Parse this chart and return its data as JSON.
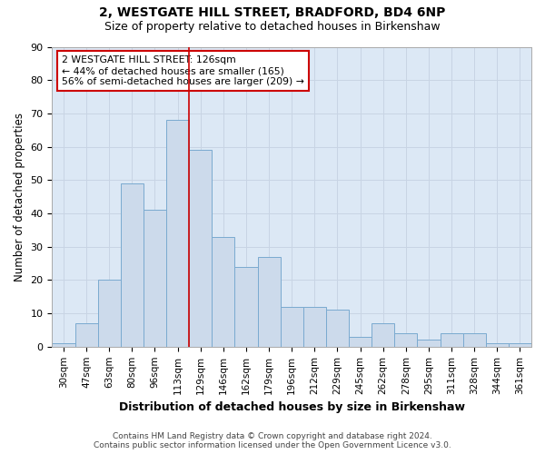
{
  "title1": "2, WESTGATE HILL STREET, BRADFORD, BD4 6NP",
  "title2": "Size of property relative to detached houses in Birkenshaw",
  "xlabel": "Distribution of detached houses by size in Birkenshaw",
  "ylabel": "Number of detached properties",
  "categories": [
    "30sqm",
    "47sqm",
    "63sqm",
    "80sqm",
    "96sqm",
    "113sqm",
    "129sqm",
    "146sqm",
    "162sqm",
    "179sqm",
    "196sqm",
    "212sqm",
    "229sqm",
    "245sqm",
    "262sqm",
    "278sqm",
    "295sqm",
    "311sqm",
    "328sqm",
    "344sqm",
    "361sqm"
  ],
  "values": [
    1,
    7,
    20,
    49,
    41,
    68,
    59,
    33,
    24,
    27,
    12,
    12,
    11,
    3,
    7,
    4,
    2,
    4,
    4,
    1,
    1
  ],
  "bar_color": "#ccdaeb",
  "bar_edge_color": "#7aaad0",
  "grid_color": "#c8d4e4",
  "vline_x": 6,
  "vline_color": "#cc0000",
  "annotation_text": "2 WESTGATE HILL STREET: 126sqm\n← 44% of detached houses are smaller (165)\n56% of semi-detached houses are larger (209) →",
  "annotation_box_color": "white",
  "annotation_box_edge": "#cc0000",
  "ylim": [
    0,
    90
  ],
  "yticks": [
    0,
    10,
    20,
    30,
    40,
    50,
    60,
    70,
    80,
    90
  ],
  "footer": "Contains HM Land Registry data © Crown copyright and database right 2024.\nContains public sector information licensed under the Open Government Licence v3.0.",
  "bg_color": "#ffffff",
  "plot_bg_color": "#dce8f5"
}
